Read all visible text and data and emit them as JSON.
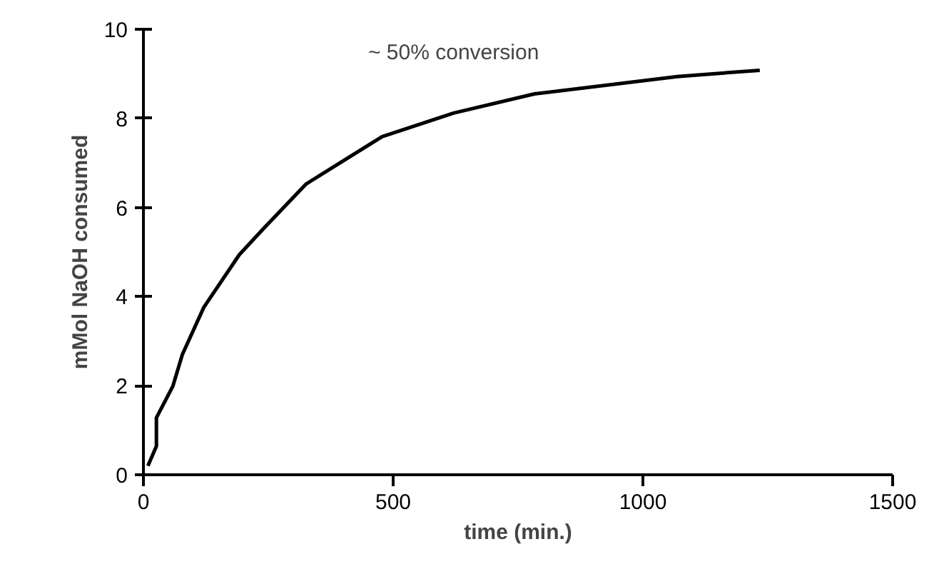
{
  "chart_data": {
    "type": "line",
    "xlabel": "time (min.)",
    "ylabel": "mMol NaOH consumed",
    "x": [
      9,
      26,
      26,
      59,
      78,
      121,
      192,
      240,
      326,
      478,
      621,
      783,
      1069,
      1234
    ],
    "series": [
      {
        "color": "#000000",
        "values": [
          0.2,
          0.64,
          1.28,
          1.99,
          2.7,
          3.76,
          4.94,
          5.52,
          6.53,
          7.59,
          8.12,
          8.55,
          8.94,
          9.08
        ]
      }
    ],
    "xlim": [
      0,
      1500
    ],
    "ylim": [
      0,
      10
    ],
    "xticks": [
      0,
      500,
      1000,
      1500
    ],
    "yticks": [
      0,
      2,
      4,
      6,
      8,
      10
    ],
    "grid": false,
    "marker": "none",
    "line_style": "solid",
    "annotations": [
      "~ 50%  conversion"
    ]
  }
}
